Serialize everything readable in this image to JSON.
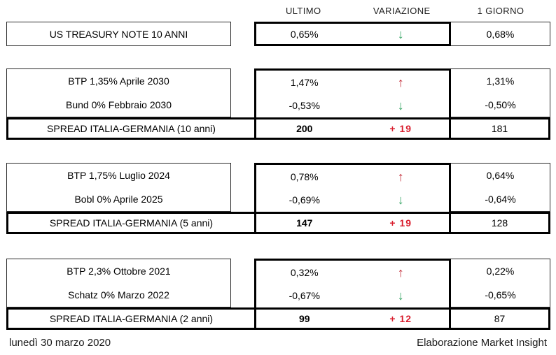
{
  "header": {
    "columns": [
      "ULTIMO",
      "VARIAZIONE",
      "1 GIORNO"
    ]
  },
  "icons": {
    "arrow_up": "↑",
    "arrow_down": "↓"
  },
  "colors": {
    "arrow_up_red": "#c22733",
    "arrow_down_green": "#2ea15e",
    "variation_red": "#d91e2e",
    "border_thick": "#000000",
    "border_thin": "#2b2b2b"
  },
  "sections": [
    {
      "type": "single",
      "bonds": [
        {
          "label": "US TREASURY NOTE 10 ANNI",
          "ultimo": "0,65%",
          "direction": "down",
          "giorno": "0,68%"
        }
      ]
    },
    {
      "type": "group",
      "bonds": [
        {
          "label": "BTP 1,35% Aprile 2030",
          "ultimo": "1,47%",
          "direction": "up",
          "giorno": "1,31%"
        },
        {
          "label": "Bund 0% Febbraio 2030",
          "ultimo": "-0,53%",
          "direction": "down",
          "giorno": "-0,50%"
        }
      ],
      "spread": {
        "label": "SPREAD ITALIA-GERMANIA (10 anni)",
        "ultimo": "200",
        "variazione": "+ 19",
        "giorno": "181"
      }
    },
    {
      "type": "group",
      "bonds": [
        {
          "label": "BTP 1,75% Luglio 2024",
          "ultimo": "0,78%",
          "direction": "up",
          "giorno": "0,64%"
        },
        {
          "label": "Bobl 0% Aprile 2025",
          "ultimo": "-0,69%",
          "direction": "down",
          "giorno": "-0,64%"
        }
      ],
      "spread": {
        "label": "SPREAD ITALIA-GERMANIA (5 anni)",
        "ultimo": "147",
        "variazione": "+ 19",
        "giorno": "128"
      }
    },
    {
      "type": "group",
      "bonds": [
        {
          "label": "BTP 2,3% Ottobre 2021",
          "ultimo": "0,32%",
          "direction": "up",
          "giorno": "0,22%"
        },
        {
          "label": "Schatz 0% Marzo 2022",
          "ultimo": "-0,67%",
          "direction": "down",
          "giorno": "-0,65%"
        }
      ],
      "spread": {
        "label": "SPREAD ITALIA-GERMANIA (2 anni)",
        "ultimo": "99",
        "variazione": "+ 12",
        "giorno": "87"
      }
    }
  ],
  "footer": {
    "date": "lunedì 30 marzo 2020",
    "credit": "Elaborazione Market Insight"
  }
}
